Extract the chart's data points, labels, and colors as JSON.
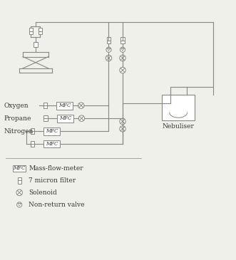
{
  "bg_color": "#f0f0eb",
  "line_color": "#888880",
  "text_color": "#333330",
  "nebuliser_label": "Nebuliser",
  "gas_labels": [
    "Oxygen",
    "Propane",
    "Nitrogen"
  ],
  "legend_mfc": "Mass-flow-meter",
  "legend_filter": "7 micron filter",
  "legend_solenoid": "Solenoid",
  "legend_nonreturn": "Non-return valve"
}
